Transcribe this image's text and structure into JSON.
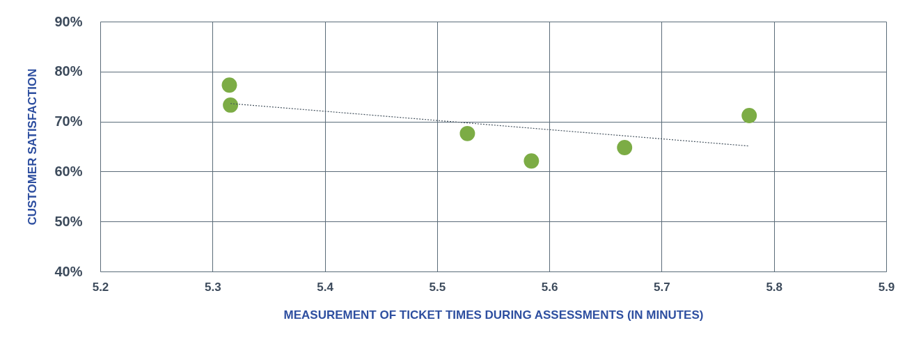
{
  "chart_data": {
    "type": "scatter",
    "xlabel": "MEASUREMENT OF TICKET TIMES DURING ASSESSMENTS (IN MINUTES)",
    "ylabel": "CUSTOMER SATISFACTION",
    "series": [
      {
        "color": "#7cac45",
        "x": [
          5.315,
          5.316,
          5.527,
          5.584,
          5.667,
          5.778
        ],
        "values": [
          77.3,
          73.3,
          67.6,
          62.1,
          64.8,
          71.2
        ]
      },
      {
        "type": "line",
        "color": "#44525e",
        "line_style": "dotted",
        "marker": "none",
        "x": [
          5.316,
          5.778
        ],
        "values": [
          73.6,
          65.1
        ]
      }
    ],
    "xlim": [
      5.2,
      5.9
    ],
    "xticks": [
      5.2,
      5.3,
      5.4,
      5.5,
      5.6,
      5.7,
      5.8,
      5.9
    ],
    "ylim": [
      40,
      90
    ],
    "yticks": [
      {
        "value": 40,
        "label": "40%"
      },
      {
        "value": 50,
        "label": "50%"
      },
      {
        "value": 60,
        "label": "60%"
      },
      {
        "value": 70,
        "label": "70%"
      },
      {
        "value": 80,
        "label": "80%"
      },
      {
        "value": 90,
        "label": "90%"
      }
    ],
    "grid": true,
    "marker": "circle"
  }
}
